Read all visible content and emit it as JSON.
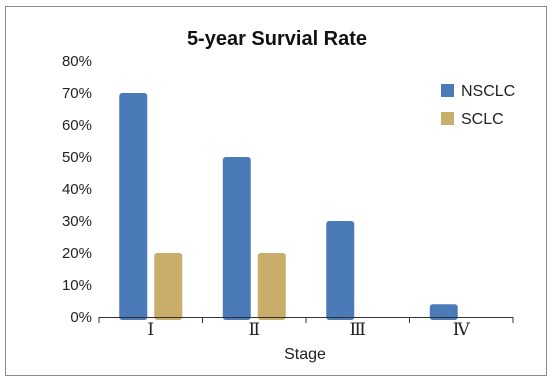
{
  "chart_data": {
    "type": "bar",
    "title": "5-year Survial Rate",
    "xlabel": "Stage",
    "ylabel": "",
    "categories": [
      "Ⅰ",
      "Ⅱ",
      "Ⅲ",
      "Ⅳ"
    ],
    "series": [
      {
        "name": "NSCLC",
        "values": [
          70,
          50,
          30,
          4
        ],
        "color": "#4a7ab8"
      },
      {
        "name": "SCLC",
        "values": [
          20,
          20,
          null,
          null
        ],
        "color": "#c9ad6a"
      }
    ],
    "ylim": [
      0,
      80
    ],
    "y_ticks": [
      "0%",
      "10%",
      "20%",
      "30%",
      "40%",
      "50%",
      "60%",
      "70%",
      "80%"
    ],
    "y_unit": "%",
    "grid": false,
    "legend_position": "top-right"
  }
}
